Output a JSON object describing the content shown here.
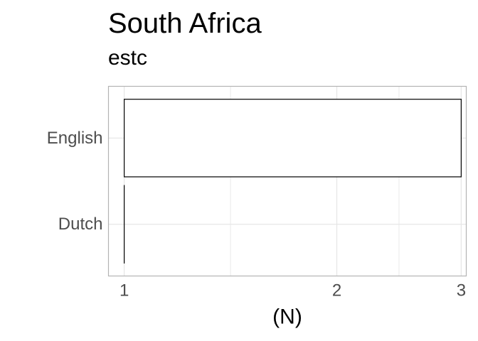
{
  "chart_data": {
    "type": "bar",
    "orientation": "horizontal",
    "title": "South Africa",
    "subtitle": "estc",
    "xlabel": "(N)",
    "ylabel": "",
    "x_scale": "log",
    "xlim": [
      0.95,
      3.05
    ],
    "x_ticks": [
      1,
      2,
      3
    ],
    "x_tick_labels": [
      "1",
      "2",
      "3"
    ],
    "categories": [
      "English",
      "Dutch"
    ],
    "values": [
      3,
      1
    ],
    "grid": true,
    "legend": "none",
    "bar_fill": "#ffffff",
    "bar_stroke": "#000000",
    "panel_border": "#b3b3b3",
    "grid_color": "#e5e5e5"
  }
}
